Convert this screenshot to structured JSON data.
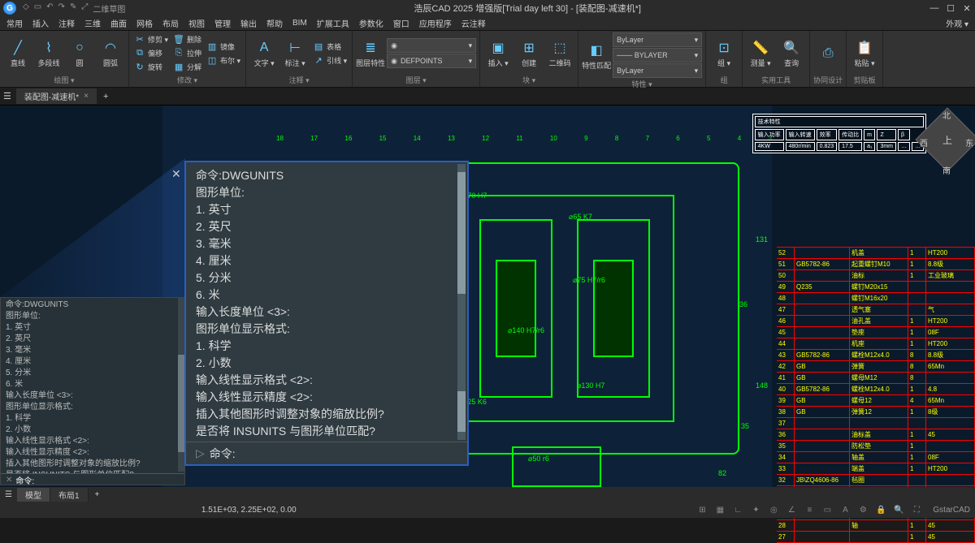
{
  "app": {
    "title": "浩辰CAD 2025 增强版[Trial day left 30] - [装配图-减速机*]",
    "appearance": "外观 ▾"
  },
  "menubar": [
    "常用",
    "插入",
    "注释",
    "三维",
    "曲面",
    "网格",
    "布局",
    "视图",
    "管理",
    "输出",
    "帮助",
    "BIM",
    "扩展工具",
    "参数化",
    "窗口",
    "应用程序",
    "云注释"
  ],
  "qat_labels": [
    "◇",
    "▭",
    "↶",
    "↷",
    "✎",
    "⤢",
    "二维草图"
  ],
  "ribbon": {
    "panels": [
      {
        "label": "绘图 ▾",
        "big": [
          {
            "icon": "╱",
            "label": "直线"
          },
          {
            "icon": "⌇",
            "label": "多段线"
          },
          {
            "icon": "○",
            "label": "圆"
          },
          {
            "icon": "◠",
            "label": "圆弧"
          }
        ],
        "small": []
      },
      {
        "label": "修改 ▾",
        "big": [],
        "small": [
          {
            "icon": "✂",
            "label": "修剪 ▾"
          },
          {
            "icon": "⧉",
            "label": "偏移"
          },
          {
            "icon": "↻",
            "label": "旋转"
          },
          {
            "icon": "🗑",
            "label": "删除"
          },
          {
            "icon": "⎘",
            "label": "拉伸"
          },
          {
            "icon": "▦",
            "label": "分解"
          },
          {
            "icon": "▥",
            "label": "镜像"
          },
          {
            "icon": "◫",
            "label": "布尔 ▾"
          }
        ]
      },
      {
        "label": "注释 ▾",
        "big": [
          {
            "icon": "A",
            "label": "文字 ▾"
          },
          {
            "icon": "⊢",
            "label": "标注 ▾"
          }
        ],
        "small": [
          {
            "icon": "▤",
            "label": "表格"
          },
          {
            "icon": "↗",
            "label": "引线 ▾"
          }
        ]
      },
      {
        "label": "图层 ▾",
        "big": [
          {
            "icon": "≣",
            "label": "图层特性"
          }
        ],
        "combos": [
          {
            "icon": "◉",
            "text": ""
          },
          {
            "icon": "◉",
            "text": "DEFPOINTS"
          }
        ],
        "small": []
      },
      {
        "label": "块 ▾",
        "big": [
          {
            "icon": "▣",
            "label": "插入 ▾"
          },
          {
            "icon": "⊞",
            "label": "创建"
          },
          {
            "icon": "⬚",
            "label": "二维码"
          }
        ],
        "small": []
      },
      {
        "label": "特性 ▾",
        "big": [
          {
            "icon": "◧",
            "label": "特性匹配"
          }
        ],
        "combos": [
          {
            "text": "ByLayer"
          },
          {
            "text": "─── BYLAYER"
          },
          {
            "text": "ByLayer"
          }
        ],
        "small": []
      },
      {
        "label": "组",
        "big": [
          {
            "icon": "⊡",
            "label": "组 ▾"
          }
        ],
        "small": []
      },
      {
        "label": "实用工具",
        "big": [
          {
            "icon": "📏",
            "label": "测量 ▾"
          },
          {
            "icon": "🔍",
            "label": "查询"
          }
        ],
        "small": []
      },
      {
        "label": "协同设计",
        "big": [
          {
            "icon": "⎙",
            "label": ""
          }
        ],
        "small": []
      },
      {
        "label": "剪贴板",
        "big": [
          {
            "icon": "📋",
            "label": "粘贴 ▾"
          }
        ],
        "small": []
      }
    ]
  },
  "docTabs": {
    "active": "装配图-减速机*"
  },
  "drawing": {
    "callouts_top": [
      "18",
      "17",
      "16",
      "15",
      "14",
      "13",
      "12",
      "11",
      "10",
      "9",
      "8",
      "7",
      "6",
      "5",
      "4",
      "3"
    ],
    "dims": [
      "⌀70 H7",
      "⌀65 K7",
      "⌀75 H7/r6",
      "⌀140 H7/r6",
      "⌀130 H7",
      "⌀25 K6",
      "⌀50 r6"
    ],
    "side_dims": [
      "131",
      "36",
      "148",
      "35",
      "82"
    ],
    "bottom_callouts": [
      "24",
      "26",
      "27",
      "28",
      "29",
      "30",
      "31",
      "33",
      "34"
    ],
    "right_call": [
      "1",
      "35"
    ]
  },
  "techTable": {
    "title": "技术特性",
    "headers": [
      "输入功率",
      "输入转速",
      "效率",
      "传动比",
      "m",
      "Z",
      "β"
    ],
    "row": [
      "4KW",
      "480r/min",
      "0.823",
      "17.5",
      "a₁",
      "3mm",
      "…",
      "…"
    ]
  },
  "bom": {
    "rows": [
      {
        "n": "52",
        "std": "",
        "name": "机盖",
        "q": "1",
        "mat": "HT200"
      },
      {
        "n": "51",
        "std": "GB5782-86",
        "name": "起重螺钉M10",
        "q": "1",
        "mat": "8.8级"
      },
      {
        "n": "50",
        "std": "",
        "name": "油标",
        "q": "1",
        "mat": "工业玻璃"
      },
      {
        "n": "49",
        "std": "Q235",
        "name": "螺钉M20x15",
        "q": "",
        "mat": ""
      },
      {
        "n": "48",
        "std": "",
        "name": "螺钉M16x20",
        "q": "",
        "mat": ""
      },
      {
        "n": "47",
        "std": "",
        "name": "透气塞",
        "q": "",
        "mat": "气"
      },
      {
        "n": "46",
        "std": "",
        "name": "油孔盖",
        "q": "1",
        "mat": "HT200"
      },
      {
        "n": "45",
        "std": "",
        "name": "垫座",
        "q": "1",
        "mat": "08F"
      },
      {
        "n": "44",
        "std": "",
        "name": "机座",
        "q": "1",
        "mat": "HT200"
      },
      {
        "n": "43",
        "std": "GB5782-86",
        "name": "螺栓M12x4.0",
        "q": "8",
        "mat": "8.8级"
      },
      {
        "n": "42",
        "std": "GB",
        "name": "弹簧",
        "q": "8",
        "mat": "65Mn"
      },
      {
        "n": "41",
        "std": "GB",
        "name": "螺母M12",
        "q": "8",
        "mat": ""
      },
      {
        "n": "40",
        "std": "GB5782-86",
        "name": "螺栓M12x4.0",
        "q": "1",
        "mat": "4.8"
      },
      {
        "n": "39",
        "std": "GB",
        "name": "螺母12",
        "q": "4",
        "mat": "65Mn"
      },
      {
        "n": "38",
        "std": "GB",
        "name": "弹簧12",
        "q": "1",
        "mat": "8级"
      },
      {
        "n": "37",
        "std": "",
        "name": "",
        "q": "",
        "mat": ""
      },
      {
        "n": "36",
        "std": "",
        "name": "油标盖",
        "q": "1",
        "mat": "45"
      },
      {
        "n": "35",
        "std": "",
        "name": "防松垫",
        "q": "1",
        "mat": ""
      },
      {
        "n": "34",
        "std": "",
        "name": "轴盖",
        "q": "1",
        "mat": "08F"
      },
      {
        "n": "33",
        "std": "",
        "name": "端盖",
        "q": "1",
        "mat": "HT200"
      },
      {
        "n": "32",
        "std": "JB\\ZQ4606-86",
        "name": "毡圈",
        "q": "",
        "mat": ""
      },
      {
        "n": "31",
        "std": "",
        "name": "键14x10",
        "q": "1",
        "mat": "45"
      },
      {
        "n": "30",
        "std": "GB",
        "name": "键14x72",
        "q": "1",
        "mat": "45"
      },
      {
        "n": "29",
        "std": "",
        "name": "键16x56",
        "q": "",
        "mat": ""
      },
      {
        "n": "28",
        "std": "",
        "name": "轴",
        "q": "1",
        "mat": "45"
      },
      {
        "n": "27",
        "std": "",
        "name": "",
        "q": "1",
        "mat": "45"
      }
    ]
  },
  "cmd": {
    "lines": [
      "命令:DWGUNITS",
      "图形单位:",
      "  1. 英寸",
      "  2. 英尺",
      "  3. 毫米",
      "  4. 厘米",
      "  5. 分米",
      "  6. 米",
      "输入长度单位 <3>:",
      "图形单位显示格式:",
      "  1. 科学",
      "  2. 小数",
      "输入线性显示格式 <2>:",
      "输入线性显示精度 <2>:",
      "插入其他图形时调整对象的缩放比例?",
      "是否将 INSUNITS 与图形单位匹配?"
    ],
    "prompt": "命令:"
  },
  "layoutTabs": [
    "模型",
    "布局1"
  ],
  "statusbar": {
    "coords": "1.51E+03, 2.25E+02, 0.00",
    "brand": "GstarCAD"
  },
  "colors": {
    "canvas_bg": "#0a1a2a",
    "drawing_green": "#00ff00",
    "bom_border": "#ff0000",
    "bom_text": "#ffff00",
    "panel_bg": "#333333",
    "cmd_bg": "#2f3b41",
    "cmd_border": "#2a5fbf"
  }
}
